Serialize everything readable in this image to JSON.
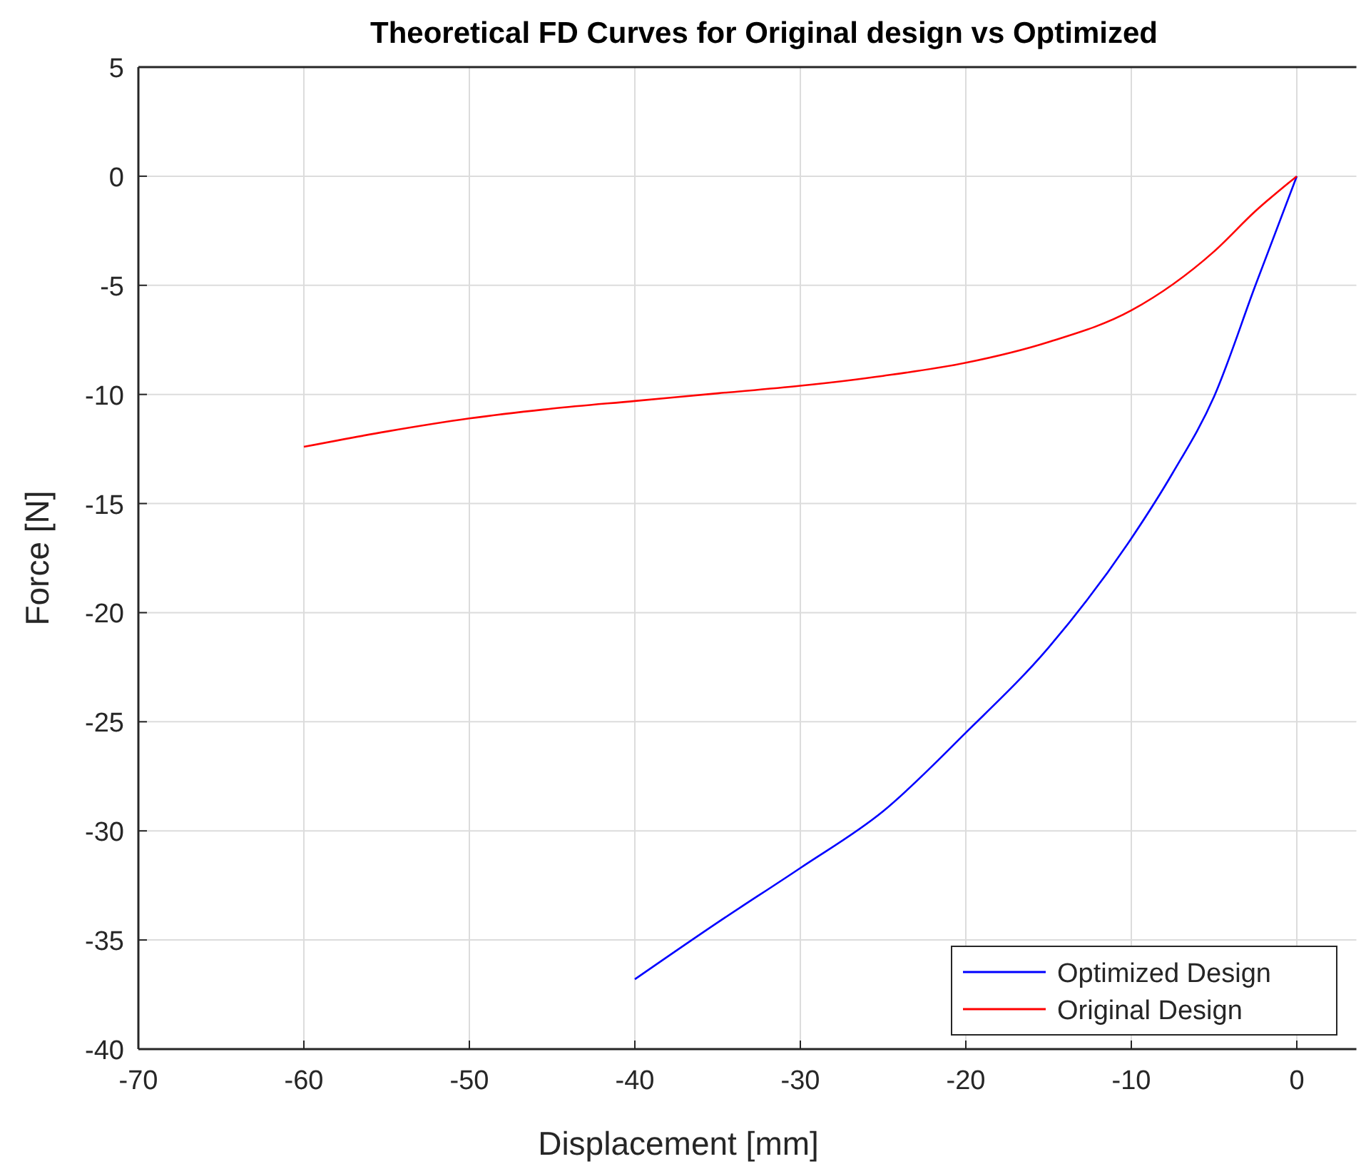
{
  "chart_data": {
    "type": "line",
    "title": "Theoretical FD Curves for Original design vs Optimized",
    "xlabel": "Displacement [mm]",
    "ylabel": "Force [N]",
    "xlim": [
      -70,
      3.6
    ],
    "xticks": [
      -70,
      -60,
      -50,
      -40,
      -30,
      -20,
      -10,
      0
    ],
    "ylim": [
      -40,
      5
    ],
    "yticks": [
      -40,
      -35,
      -30,
      -25,
      -20,
      -15,
      -10,
      -5,
      0,
      5
    ],
    "grid": true,
    "legend": "bottom right",
    "line_style": "solid",
    "marker": "none",
    "series": [
      {
        "name": "Optimized Design",
        "color": "#0000ff",
        "x": [
          -40,
          -35,
          -30,
          -25,
          -20,
          -15,
          -10,
          -7.5,
          -5,
          -2.5,
          0
        ],
        "values": [
          -36.8,
          -34.2,
          -31.7,
          -29.1,
          -25.5,
          -21.6,
          -16.6,
          -13.6,
          -10.1,
          -5,
          0
        ]
      },
      {
        "name": "Original Design",
        "color": "#ff0000",
        "x": [
          -60,
          -55,
          -50,
          -45,
          -40,
          -35,
          -30,
          -25,
          -20,
          -15,
          -10,
          -5,
          -2.5,
          0
        ],
        "values": [
          -12.4,
          -11.7,
          -11.1,
          -10.65,
          -10.3,
          -9.95,
          -9.6,
          -9.15,
          -8.55,
          -7.6,
          -6.15,
          -3.45,
          -1.6,
          0
        ]
      }
    ]
  }
}
